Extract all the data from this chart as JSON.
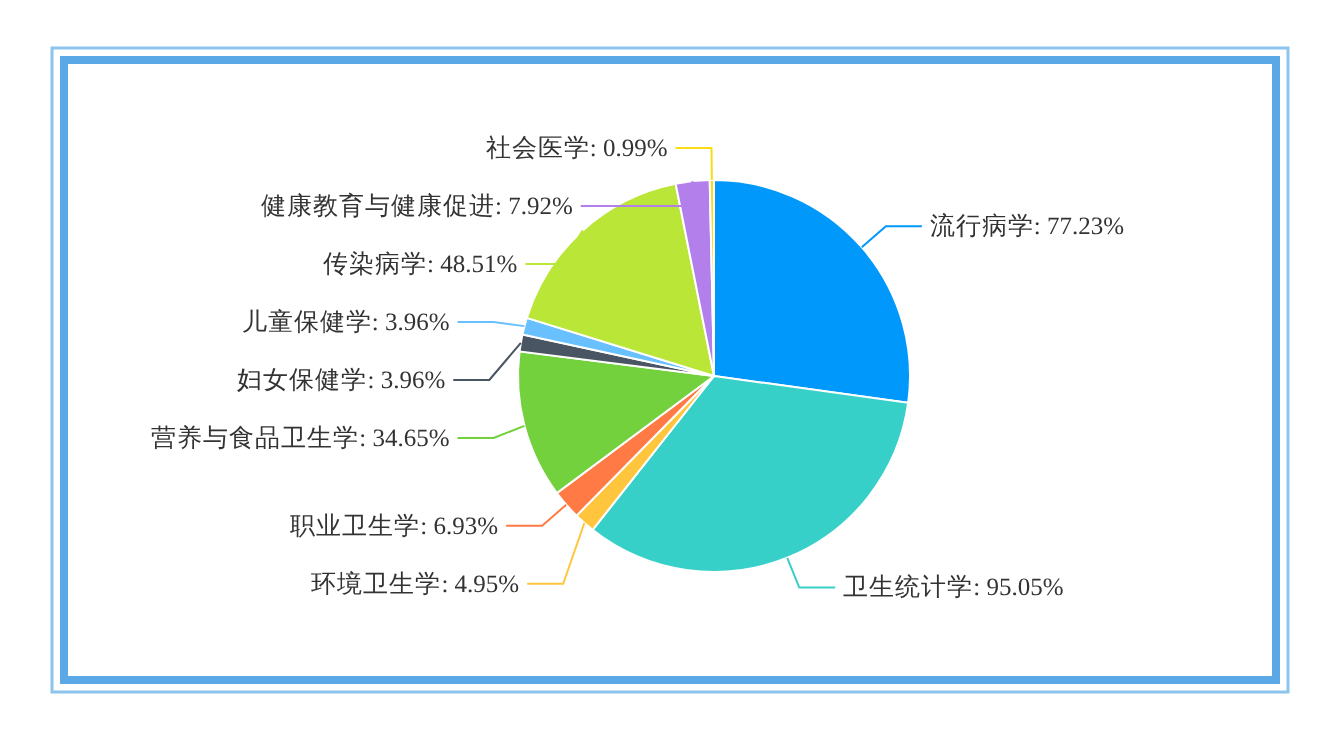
{
  "chart_data": {
    "type": "pie",
    "categories": [
      "流行病学",
      "卫生统计学",
      "环境卫生学",
      "职业卫生学",
      "营养与食品卫生学",
      "妇女保健学",
      "儿童保健学",
      "传染病学",
      "健康教育与健康促进",
      "社会医学"
    ],
    "values": [
      77.23,
      95.05,
      4.95,
      6.93,
      34.65,
      3.96,
      3.96,
      48.51,
      7.92,
      0.99
    ],
    "value_labels": [
      "77.23%",
      "95.05%",
      "4.95%",
      "6.93%",
      "34.65%",
      "3.96%",
      "3.96%",
      "48.51%",
      "7.92%",
      "0.99%"
    ],
    "colors": [
      "#0098fa",
      "#36d0c8",
      "#ffc53d",
      "#ff7a45",
      "#73d13d",
      "#4a5563",
      "#69c0ff",
      "#bae637",
      "#b37feb",
      "#fadb14"
    ]
  }
}
